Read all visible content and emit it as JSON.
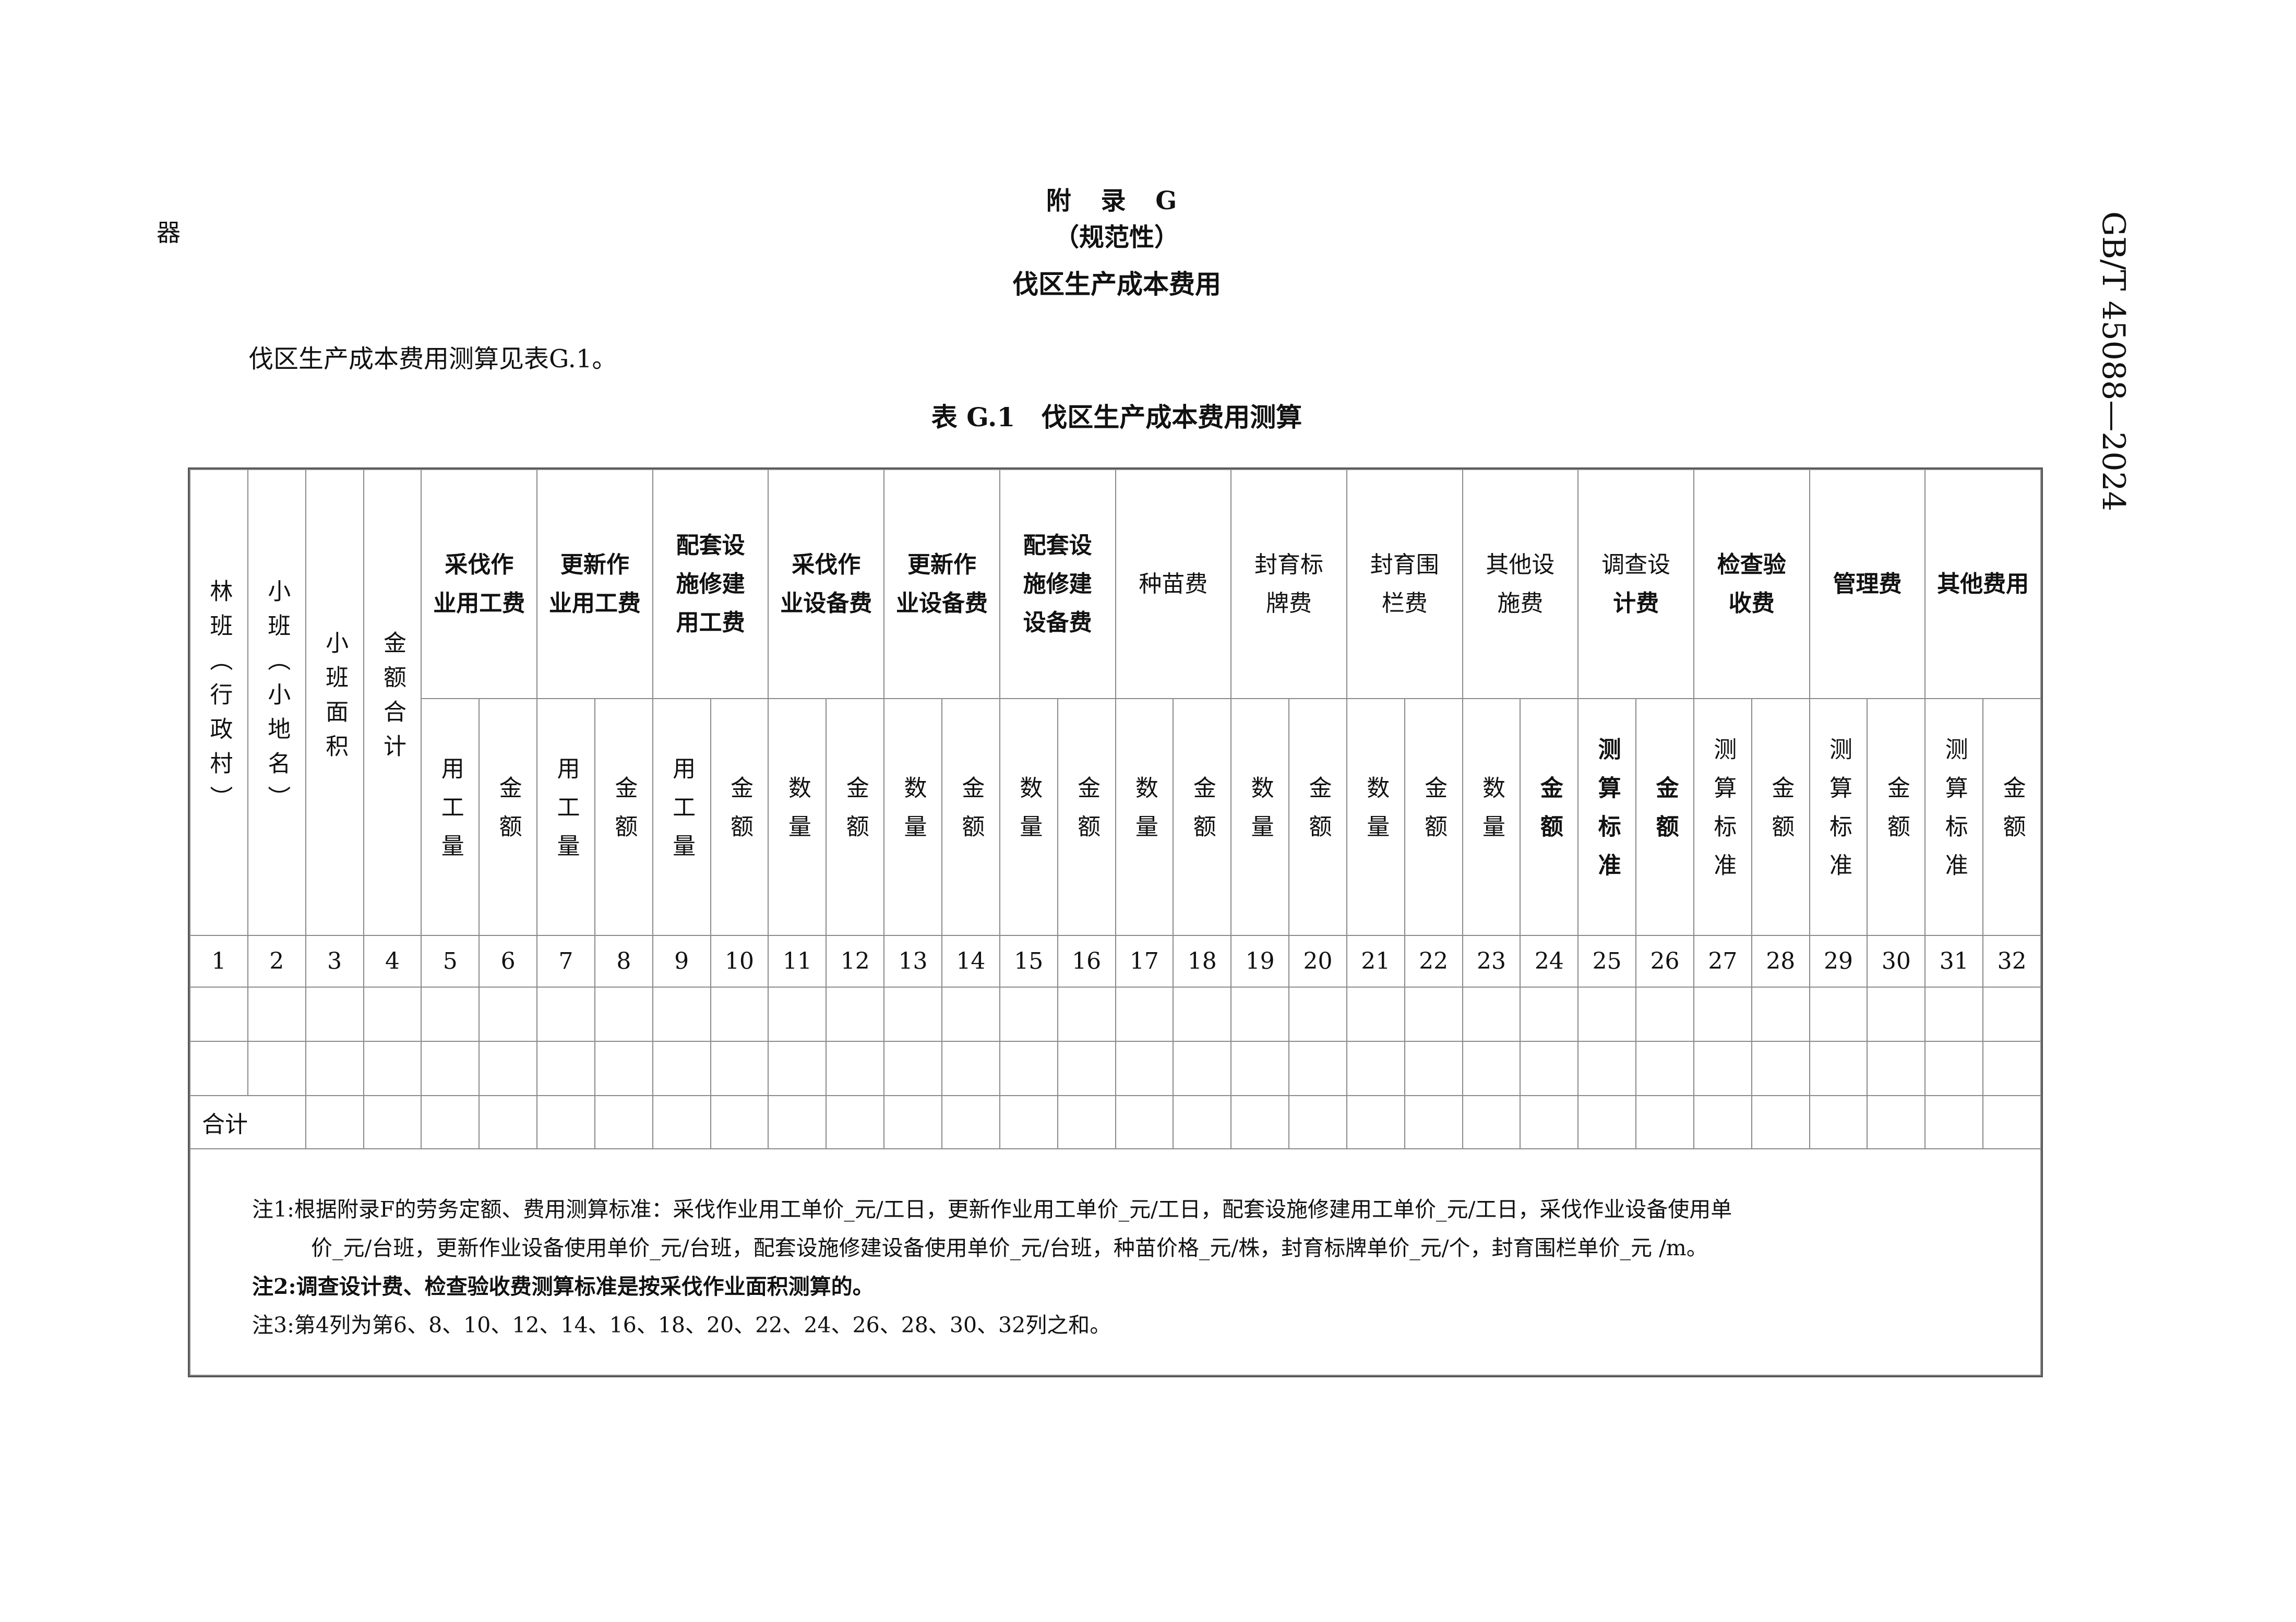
{
  "corner_char": "器",
  "standard_code": "GB/T 45088—2024",
  "appendix": {
    "title": "附 录 G",
    "subtitle": "（规范性）",
    "name": "伐区生产成本费用"
  },
  "intro": "伐区生产成本费用测算见表G.1。",
  "table": {
    "caption": "表 G.1　伐区生产成本费用测算",
    "fixed_headers": [
      "林班（行政村）",
      "小班（小地名）",
      "小班面积",
      "金额合计"
    ],
    "groups": [
      {
        "label_lines": [
          "采伐作",
          "业用工费"
        ],
        "sub": [
          "用工量",
          "金额"
        ]
      },
      {
        "label_lines": [
          "更新作",
          "业用工费"
        ],
        "sub": [
          "用工量",
          "金额"
        ]
      },
      {
        "label_lines": [
          "配套设",
          "施修建",
          "用工费"
        ],
        "sub": [
          "用工量",
          "金额"
        ]
      },
      {
        "label_lines": [
          "采伐作",
          "业设备费"
        ],
        "sub": [
          "数量",
          "金额"
        ]
      },
      {
        "label_lines": [
          "更新作",
          "业设备费"
        ],
        "sub": [
          "数量",
          "金额"
        ]
      },
      {
        "label_lines": [
          "配套设",
          "施修建",
          "设备费"
        ],
        "sub": [
          "数量",
          "金额"
        ]
      },
      {
        "label_lines": [
          "种苗费"
        ],
        "sub": [
          "数量",
          "金额"
        ]
      },
      {
        "label_lines": [
          "封育标",
          "牌费"
        ],
        "sub": [
          "数量",
          "金额"
        ]
      },
      {
        "label_lines": [
          "封育围",
          "栏费"
        ],
        "sub": [
          "数量",
          "金额"
        ]
      },
      {
        "label_lines": [
          "其他设",
          "施费"
        ],
        "sub": [
          "数量",
          "金额"
        ]
      },
      {
        "label_lines": [
          "调查设",
          "计费"
        ],
        "sub": [
          "测算标准",
          "金额"
        ]
      },
      {
        "label_lines": [
          "检查验",
          "收费"
        ],
        "sub": [
          "测算标准",
          "金额"
        ]
      },
      {
        "label_lines": [
          "管理费"
        ],
        "sub": [
          "测算标准",
          "金额"
        ]
      },
      {
        "label_lines": [
          "其他费用"
        ],
        "sub": [
          "测算标准",
          "金额"
        ]
      }
    ],
    "column_numbers": [
      "1",
      "2",
      "3",
      "4",
      "5",
      "6",
      "7",
      "8",
      "9",
      "10",
      "11",
      "12",
      "13",
      "14",
      "15",
      "16",
      "17",
      "18",
      "19",
      "20",
      "21",
      "22",
      "23",
      "24",
      "25",
      "26",
      "27",
      "28",
      "29",
      "30",
      "31",
      "32"
    ],
    "blank_rows": 2,
    "total_label": "合计",
    "notes": {
      "note1_line1": "注1:根据附录F的劳务定额、费用测算标准：采伐作业用工单价_元/工日，更新作业用工单价_元/工日，配套设施修建用工单价_元/工日，采伐作业设备使用单",
      "note1_line2": "价_元/台班，更新作业设备使用单价_元/台班，配套设施修建设备使用单价_元/台班，种苗价格_元/株，封育标牌单价_元/个，封育围栏单价_元 /m。",
      "note2": "注2:调查设计费、检查验收费测算标准是按采伐作业面积测算的。",
      "note3": "注3:第4列为第6、8、10、12、14、16、18、20、22、24、26、28、30、32列之和。"
    }
  }
}
